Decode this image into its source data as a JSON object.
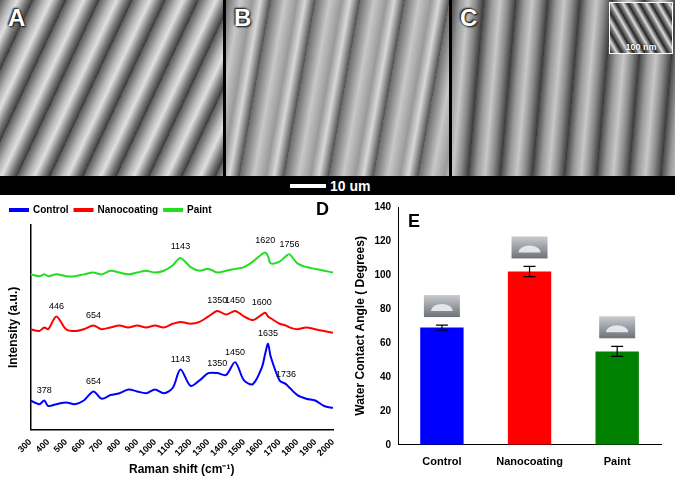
{
  "images": [
    {
      "label": "A"
    },
    {
      "label": "B"
    },
    {
      "label": "C",
      "inset_scale_bar": "100 nm"
    }
  ],
  "scale_bar": "10 um",
  "chart_data": [
    {
      "panel": "D",
      "type": "line",
      "x_label": "Raman shift (cm⁻¹)",
      "y_label": "Intensity (a.u.)",
      "x": [
        300,
        350,
        378,
        400,
        446,
        500,
        550,
        600,
        654,
        700,
        750,
        800,
        850,
        900,
        950,
        1000,
        1050,
        1100,
        1143,
        1200,
        1250,
        1300,
        1350,
        1400,
        1450,
        1500,
        1550,
        1600,
        1620,
        1635,
        1650,
        1700,
        1736,
        1756,
        1800,
        1850,
        1900,
        1950,
        2000
      ],
      "series": [
        {
          "name": "Control",
          "color": "#0000ff",
          "values": [
            16,
            14,
            16,
            13,
            14,
            15,
            14,
            16,
            21,
            17,
            19,
            20,
            22,
            21,
            20,
            22,
            20,
            23,
            33,
            24,
            27,
            31,
            31,
            30,
            37,
            27,
            25,
            34,
            42,
            47,
            40,
            27,
            25,
            23,
            19,
            17,
            16,
            13,
            12
          ]
        },
        {
          "name": "Nanocoating",
          "color": "#ff0000",
          "values": [
            55,
            54,
            56,
            55,
            62,
            55,
            54,
            55,
            57,
            55,
            56,
            57,
            56,
            57,
            56,
            57,
            56,
            58,
            59,
            58,
            59,
            62,
            65,
            63,
            65,
            62,
            60,
            63,
            64,
            62,
            61,
            58,
            57,
            56,
            55,
            56,
            55,
            54,
            53
          ]
        },
        {
          "name": "Paint",
          "color": "#22dd22",
          "values": [
            85,
            84,
            85,
            84,
            85,
            84,
            84,
            85,
            86,
            85,
            87,
            86,
            85,
            86,
            87,
            86,
            87,
            90,
            94,
            89,
            87,
            88,
            86,
            87,
            88,
            89,
            92,
            96,
            97,
            95,
            91,
            92,
            95,
            96,
            91,
            89,
            88,
            87,
            86
          ]
        }
      ],
      "xlim": [
        300,
        2000
      ],
      "xticks": [
        300,
        400,
        500,
        600,
        700,
        800,
        900,
        1000,
        1100,
        1200,
        1300,
        1400,
        1500,
        1600,
        1700,
        1800,
        1900,
        2000
      ],
      "ylim": [
        0,
        112
      ],
      "tick_labels": "x",
      "grid": false,
      "legend": "upper left",
      "marker": "none",
      "annotations": [
        {
          "text": "1143",
          "x": 1143,
          "y": 98
        },
        {
          "text": "1620",
          "x": 1620,
          "y": 101
        },
        {
          "text": "1756",
          "x": 1756,
          "y": 99
        },
        {
          "text": "446",
          "x": 446,
          "y": 65
        },
        {
          "text": "654",
          "x": 654,
          "y": 60
        },
        {
          "text": "1350",
          "x": 1350,
          "y": 68
        },
        {
          "text": "1450",
          "x": 1450,
          "y": 68
        },
        {
          "text": "1600",
          "x": 1600,
          "y": 67
        },
        {
          "text": "378",
          "x": 378,
          "y": 19
        },
        {
          "text": "654",
          "x": 654,
          "y": 24
        },
        {
          "text": "1143",
          "x": 1143,
          "y": 36
        },
        {
          "text": "1350",
          "x": 1350,
          "y": 34
        },
        {
          "text": "1450",
          "x": 1450,
          "y": 40
        },
        {
          "text": "1635",
          "x": 1635,
          "y": 50
        },
        {
          "text": "1736",
          "x": 1736,
          "y": 28
        }
      ]
    },
    {
      "panel": "E",
      "type": "bar",
      "categories": [
        "Control",
        "Nanocoating",
        "Paint"
      ],
      "values": [
        69,
        102,
        55
      ],
      "errors": [
        1.5,
        3,
        3
      ],
      "colors": [
        "#0000ff",
        "#ff0000",
        "#008000"
      ],
      "y_label": "Water Contact Angle ( Degrees)",
      "ylim": [
        0,
        140
      ],
      "yticks": [
        0,
        20,
        40,
        60,
        80,
        100,
        120,
        140
      ],
      "grid": false,
      "legend": "none"
    }
  ]
}
